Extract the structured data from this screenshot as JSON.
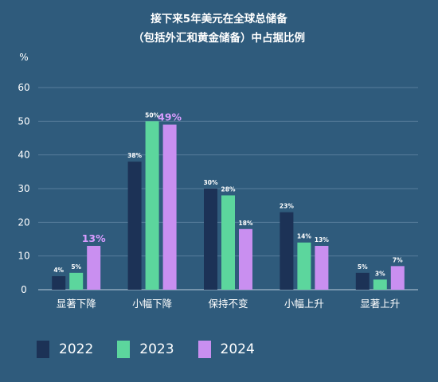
{
  "chart_data": {
    "type": "bar",
    "title_lines": [
      "接下来5年美元在全球总储备",
      "（包括外汇和黄金储备）中占据比例"
    ],
    "ylabel": "%",
    "ylim": [
      0,
      60
    ],
    "yticks": [
      0,
      10,
      20,
      30,
      40,
      50,
      60
    ],
    "grid": true,
    "legend_position": "bottom",
    "categories": [
      "显著下降",
      "小幅下降",
      "保持不变",
      "小幅上升",
      "显著上升"
    ],
    "series": [
      {
        "name": "2022",
        "color": "#1c3256",
        "values": [
          4,
          38,
          30,
          23,
          5
        ],
        "labels": [
          "4%",
          "38%",
          "30%",
          "23%",
          "5%"
        ]
      },
      {
        "name": "2023",
        "color": "#5cd69d",
        "values": [
          5,
          50,
          28,
          14,
          3
        ],
        "labels": [
          "5%",
          "50%",
          "28%",
          "14%",
          "3%"
        ]
      },
      {
        "name": "2024",
        "color": "#c98ff0",
        "values": [
          13,
          49,
          18,
          13,
          7
        ],
        "labels": [
          "13%",
          "49%",
          "18%",
          "13%",
          "7%"
        ]
      }
    ],
    "highlighted_labels": [
      {
        "series": 2,
        "category": 0
      },
      {
        "series": 2,
        "category": 1
      }
    ],
    "highlight_color": "#d99cff"
  }
}
